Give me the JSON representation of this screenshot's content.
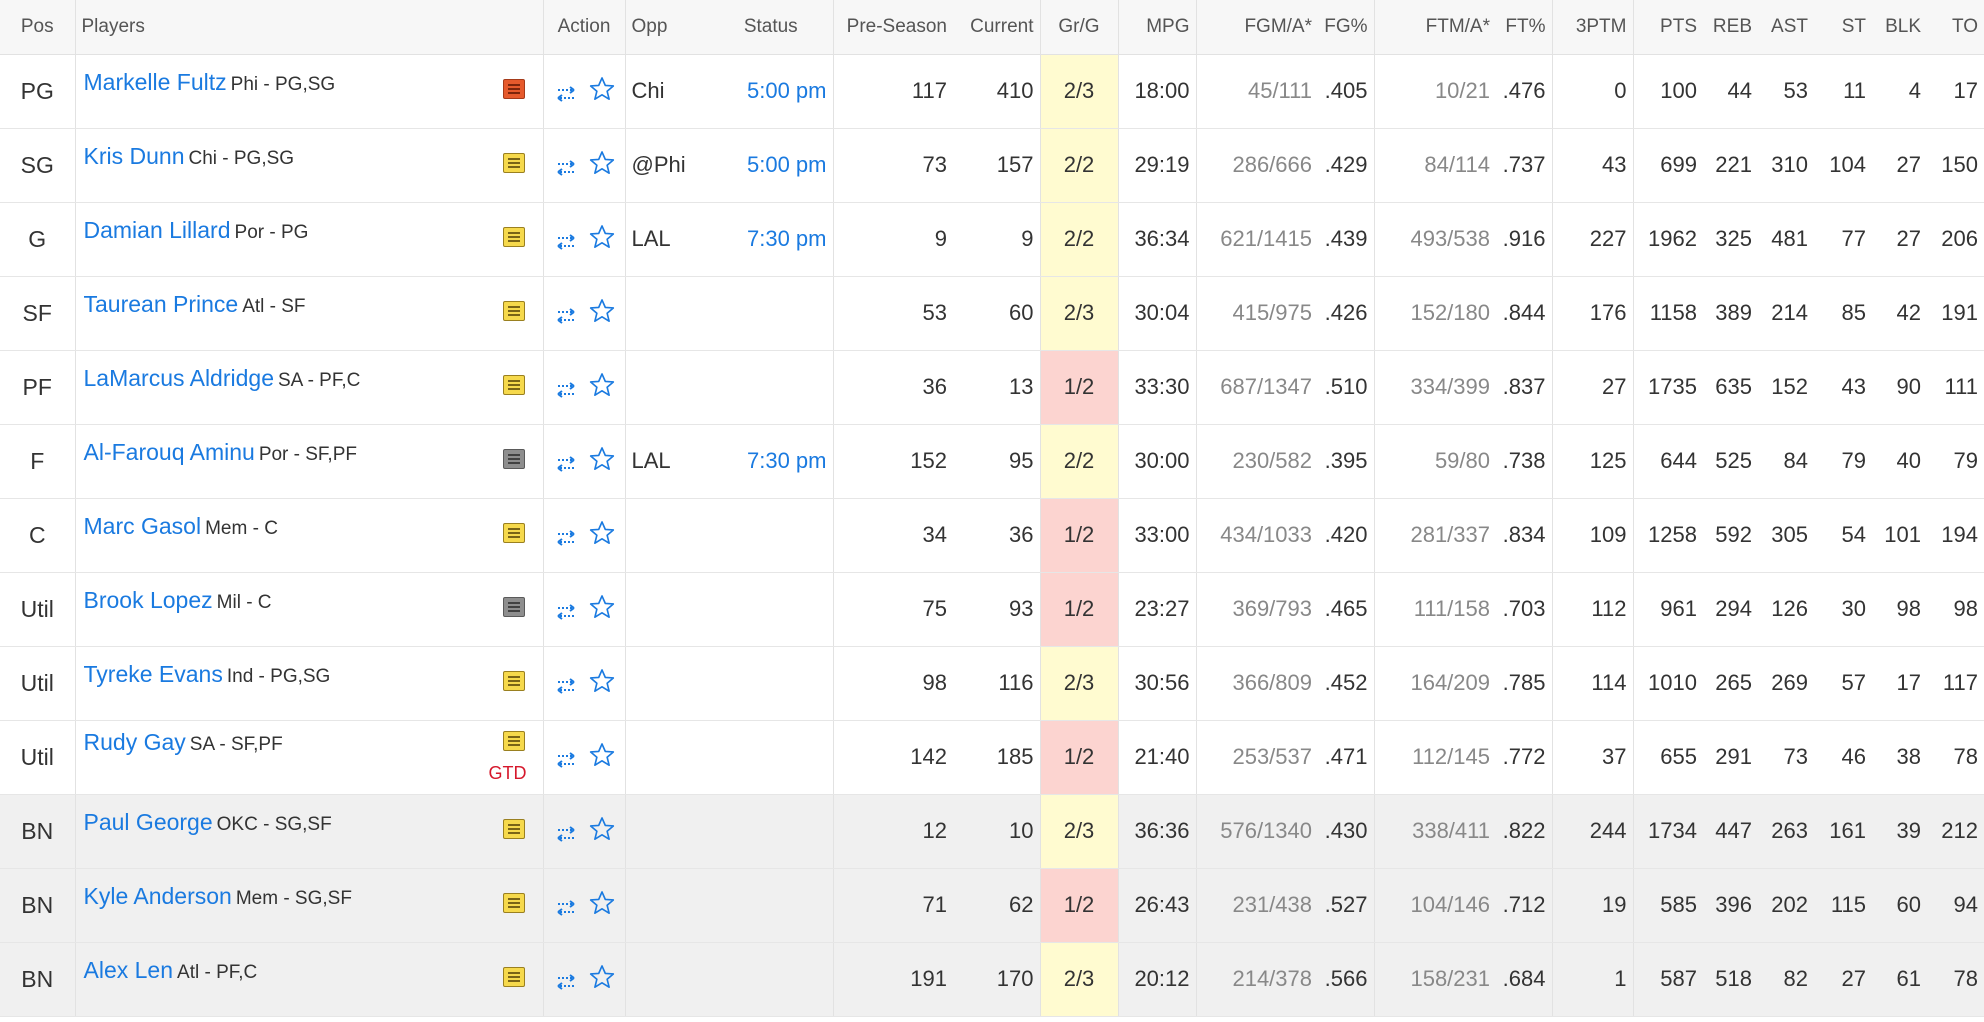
{
  "headers": {
    "pos": "Pos",
    "players": "Players",
    "action": "Action",
    "opp": "Opp",
    "status": "Status",
    "preseason": "Pre-Season",
    "current": "Current",
    "grg": "Gr/G",
    "mpg": "MPG",
    "fgma": "FGM/A*",
    "fgpct": "FG%",
    "ftma": "FTM/A*",
    "ftpct": "FT%",
    "threeptm": "3PTM",
    "pts": "PTS",
    "reb": "REB",
    "ast": "AST",
    "st": "ST",
    "blk": "BLK",
    "to": "TO"
  },
  "colors": {
    "link": "#1a7ae0",
    "gg_yellow": "#fffbd0",
    "gg_red": "#fcd4d0",
    "gtd": "#d6182c",
    "bench_bg": "#f0f0f0"
  },
  "rows": [
    {
      "pos": "PG",
      "name": "Markelle Fultz",
      "meta": "Phi - PG,SG",
      "note": "red",
      "gtd": "",
      "opp": "Chi",
      "status": "5:00 pm",
      "pre": "117",
      "cur": "410",
      "grg": "2/3",
      "grg_color": "yellow",
      "mpg": "18:00",
      "fgma": "45/111",
      "fgpct": ".405",
      "ftma": "10/21",
      "ftpct": ".476",
      "tpm": "0",
      "pts": "100",
      "reb": "44",
      "ast": "53",
      "st": "11",
      "blk": "4",
      "to": "17",
      "bench": false
    },
    {
      "pos": "SG",
      "name": "Kris Dunn",
      "meta": "Chi - PG,SG",
      "note": "yellow",
      "gtd": "",
      "opp": "@Phi",
      "status": "5:00 pm",
      "pre": "73",
      "cur": "157",
      "grg": "2/2",
      "grg_color": "yellow",
      "mpg": "29:19",
      "fgma": "286/666",
      "fgpct": ".429",
      "ftma": "84/114",
      "ftpct": ".737",
      "tpm": "43",
      "pts": "699",
      "reb": "221",
      "ast": "310",
      "st": "104",
      "blk": "27",
      "to": "150",
      "bench": false
    },
    {
      "pos": "G",
      "name": "Damian Lillard",
      "meta": "Por - PG",
      "note": "yellow",
      "gtd": "",
      "opp": "LAL",
      "status": "7:30 pm",
      "pre": "9",
      "cur": "9",
      "grg": "2/2",
      "grg_color": "yellow",
      "mpg": "36:34",
      "fgma": "621/1415",
      "fgpct": ".439",
      "ftma": "493/538",
      "ftpct": ".916",
      "tpm": "227",
      "pts": "1962",
      "reb": "325",
      "ast": "481",
      "st": "77",
      "blk": "27",
      "to": "206",
      "bench": false
    },
    {
      "pos": "SF",
      "name": "Taurean Prince",
      "meta": "Atl - SF",
      "note": "yellow",
      "gtd": "",
      "opp": "",
      "status": "",
      "pre": "53",
      "cur": "60",
      "grg": "2/3",
      "grg_color": "yellow",
      "mpg": "30:04",
      "fgma": "415/975",
      "fgpct": ".426",
      "ftma": "152/180",
      "ftpct": ".844",
      "tpm": "176",
      "pts": "1158",
      "reb": "389",
      "ast": "214",
      "st": "85",
      "blk": "42",
      "to": "191",
      "bench": false
    },
    {
      "pos": "PF",
      "name": "LaMarcus Aldridge",
      "meta": "SA - PF,C",
      "note": "yellow",
      "gtd": "",
      "opp": "",
      "status": "",
      "pre": "36",
      "cur": "13",
      "grg": "1/2",
      "grg_color": "pink",
      "mpg": "33:30",
      "fgma": "687/1347",
      "fgpct": ".510",
      "ftma": "334/399",
      "ftpct": ".837",
      "tpm": "27",
      "pts": "1735",
      "reb": "635",
      "ast": "152",
      "st": "43",
      "blk": "90",
      "to": "111",
      "bench": false
    },
    {
      "pos": "F",
      "name": "Al-Farouq Aminu",
      "meta": "Por - SF,PF",
      "note": "grey",
      "gtd": "",
      "opp": "LAL",
      "status": "7:30 pm",
      "pre": "152",
      "cur": "95",
      "grg": "2/2",
      "grg_color": "yellow",
      "mpg": "30:00",
      "fgma": "230/582",
      "fgpct": ".395",
      "ftma": "59/80",
      "ftpct": ".738",
      "tpm": "125",
      "pts": "644",
      "reb": "525",
      "ast": "84",
      "st": "79",
      "blk": "40",
      "to": "79",
      "bench": false
    },
    {
      "pos": "C",
      "name": "Marc Gasol",
      "meta": "Mem - C",
      "note": "yellow",
      "gtd": "",
      "opp": "",
      "status": "",
      "pre": "34",
      "cur": "36",
      "grg": "1/2",
      "grg_color": "pink",
      "mpg": "33:00",
      "fgma": "434/1033",
      "fgpct": ".420",
      "ftma": "281/337",
      "ftpct": ".834",
      "tpm": "109",
      "pts": "1258",
      "reb": "592",
      "ast": "305",
      "st": "54",
      "blk": "101",
      "to": "194",
      "bench": false
    },
    {
      "pos": "Util",
      "name": "Brook Lopez",
      "meta": "Mil - C",
      "note": "grey",
      "gtd": "",
      "opp": "",
      "status": "",
      "pre": "75",
      "cur": "93",
      "grg": "1/2",
      "grg_color": "pink",
      "mpg": "23:27",
      "fgma": "369/793",
      "fgpct": ".465",
      "ftma": "111/158",
      "ftpct": ".703",
      "tpm": "112",
      "pts": "961",
      "reb": "294",
      "ast": "126",
      "st": "30",
      "blk": "98",
      "to": "98",
      "bench": false
    },
    {
      "pos": "Util",
      "name": "Tyreke Evans",
      "meta": "Ind - PG,SG",
      "note": "yellow",
      "gtd": "",
      "opp": "",
      "status": "",
      "pre": "98",
      "cur": "116",
      "grg": "2/3",
      "grg_color": "yellow",
      "mpg": "30:56",
      "fgma": "366/809",
      "fgpct": ".452",
      "ftma": "164/209",
      "ftpct": ".785",
      "tpm": "114",
      "pts": "1010",
      "reb": "265",
      "ast": "269",
      "st": "57",
      "blk": "17",
      "to": "117",
      "bench": false
    },
    {
      "pos": "Util",
      "name": "Rudy Gay",
      "meta": "SA - SF,PF",
      "note": "yellow",
      "gtd": "GTD",
      "opp": "",
      "status": "",
      "pre": "142",
      "cur": "185",
      "grg": "1/2",
      "grg_color": "pink",
      "mpg": "21:40",
      "fgma": "253/537",
      "fgpct": ".471",
      "ftma": "112/145",
      "ftpct": ".772",
      "tpm": "37",
      "pts": "655",
      "reb": "291",
      "ast": "73",
      "st": "46",
      "blk": "38",
      "to": "78",
      "bench": false
    },
    {
      "pos": "BN",
      "name": "Paul George",
      "meta": "OKC - SG,SF",
      "note": "yellow",
      "gtd": "",
      "opp": "",
      "status": "",
      "pre": "12",
      "cur": "10",
      "grg": "2/3",
      "grg_color": "yellow",
      "mpg": "36:36",
      "fgma": "576/1340",
      "fgpct": ".430",
      "ftma": "338/411",
      "ftpct": ".822",
      "tpm": "244",
      "pts": "1734",
      "reb": "447",
      "ast": "263",
      "st": "161",
      "blk": "39",
      "to": "212",
      "bench": true
    },
    {
      "pos": "BN",
      "name": "Kyle Anderson",
      "meta": "Mem - SG,SF",
      "note": "yellow",
      "gtd": "",
      "opp": "",
      "status": "",
      "pre": "71",
      "cur": "62",
      "grg": "1/2",
      "grg_color": "pink",
      "mpg": "26:43",
      "fgma": "231/438",
      "fgpct": ".527",
      "ftma": "104/146",
      "ftpct": ".712",
      "tpm": "19",
      "pts": "585",
      "reb": "396",
      "ast": "202",
      "st": "115",
      "blk": "60",
      "to": "94",
      "bench": true
    },
    {
      "pos": "BN",
      "name": "Alex Len",
      "meta": "Atl - PF,C",
      "note": "yellow",
      "gtd": "",
      "opp": "",
      "status": "",
      "pre": "191",
      "cur": "170",
      "grg": "2/3",
      "grg_color": "yellow",
      "mpg": "20:12",
      "fgma": "214/378",
      "fgpct": ".566",
      "ftma": "158/231",
      "ftpct": ".684",
      "tpm": "1",
      "pts": "587",
      "reb": "518",
      "ast": "82",
      "st": "27",
      "blk": "61",
      "to": "78",
      "bench": true
    }
  ]
}
